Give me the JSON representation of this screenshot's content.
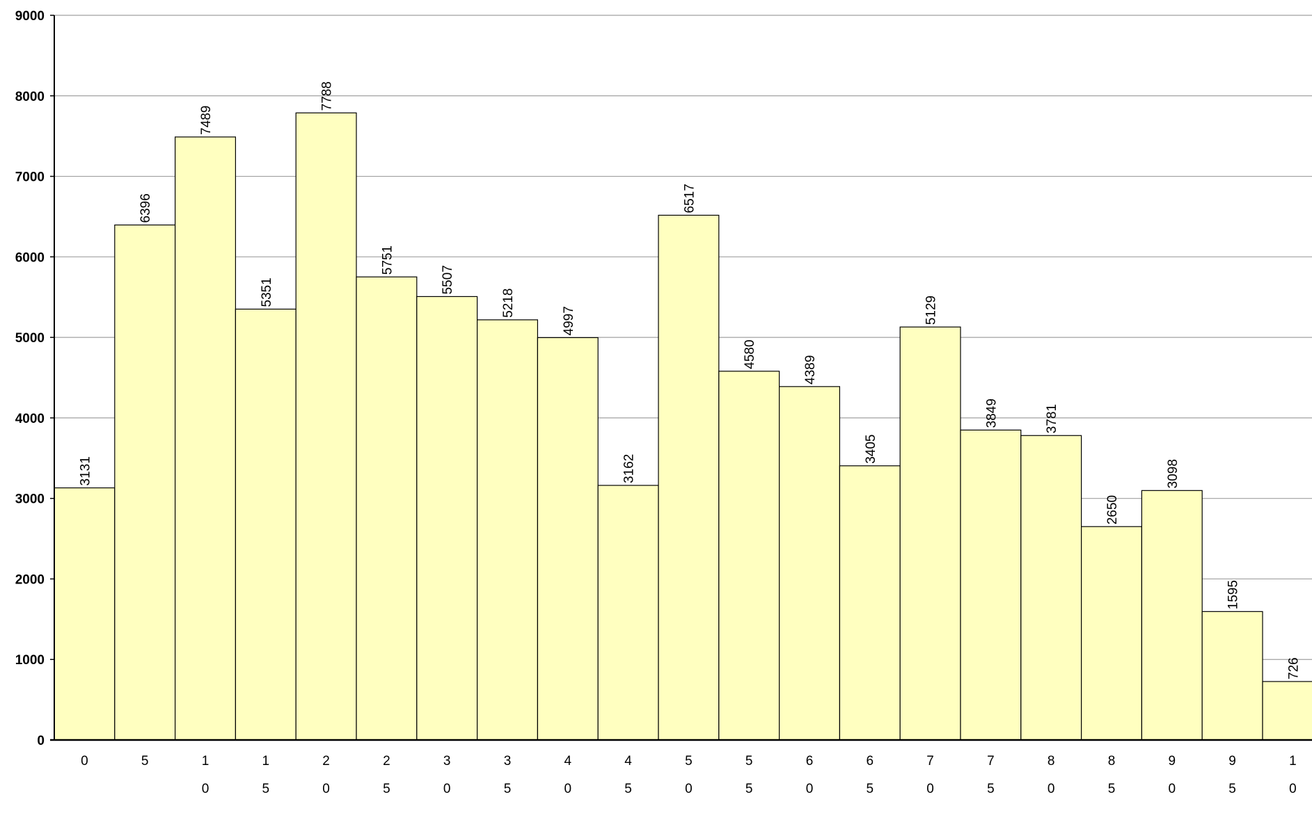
{
  "chart_data": {
    "type": "bar",
    "title": "",
    "xlabel": "",
    "ylabel": "",
    "categories": [
      "0",
      "5",
      "10",
      "15",
      "20",
      "25",
      "30",
      "35",
      "40",
      "45",
      "50",
      "55",
      "60",
      "65",
      "70",
      "75",
      "80",
      "85",
      "90",
      "95",
      "100"
    ],
    "values": [
      3131,
      6396,
      7489,
      5351,
      7788,
      5751,
      5507,
      5218,
      4997,
      3162,
      6517,
      4580,
      4389,
      3405,
      5129,
      3849,
      3781,
      2650,
      3098,
      1595,
      726
    ],
    "ylim": [
      0,
      9000
    ],
    "yticks": [
      0,
      1000,
      2000,
      3000,
      4000,
      5000,
      6000,
      7000,
      8000,
      9000
    ],
    "grid": true,
    "legend": "none",
    "colors": {
      "bar_fill": "#FFFFC0",
      "bar_stroke": "#000000",
      "grid": "#A0A0A0",
      "axis": "#000000"
    }
  }
}
